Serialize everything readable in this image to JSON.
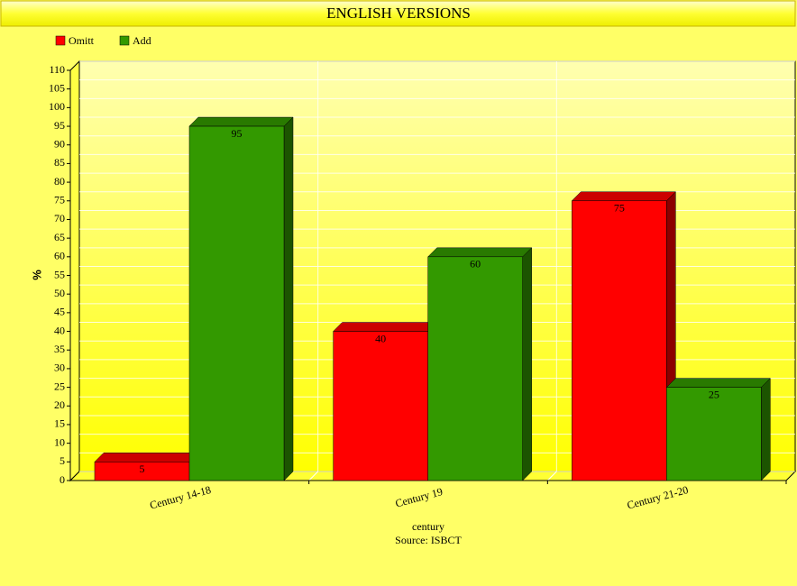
{
  "chart_data": {
    "type": "bar3d",
    "title": "ENGLISH VERSIONS",
    "categories": [
      "Century 14-18",
      "Century 19",
      "Century 21-20"
    ],
    "series": [
      {
        "name": "Omitt",
        "color": "#ff0000",
        "values": [
          5,
          40,
          75
        ]
      },
      {
        "name": "Add",
        "color": "#339900",
        "values": [
          95,
          60,
          25
        ]
      }
    ],
    "ylabel": "%",
    "xlabel": "century",
    "source": "Source: ISBCT",
    "ylim": [
      0,
      110
    ],
    "yticks": [
      0,
      5,
      10,
      15,
      20,
      25,
      30,
      35,
      40,
      45,
      50,
      55,
      60,
      65,
      70,
      75,
      80,
      85,
      90,
      95,
      100,
      105,
      110
    ],
    "grid": true,
    "legend": "top-left"
  }
}
